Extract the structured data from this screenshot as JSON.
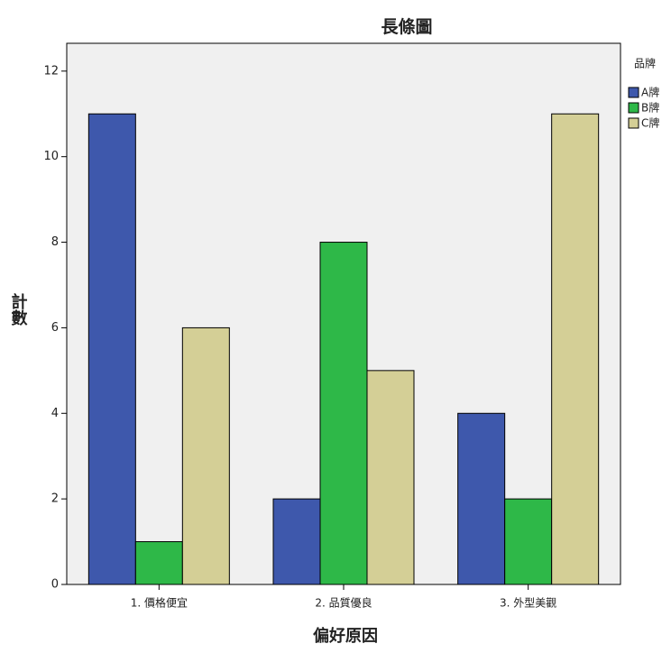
{
  "chart_data": {
    "type": "bar",
    "title": "長條圖",
    "x_label": "偏好原因",
    "y_label": "計數",
    "categories": [
      "1. 價格便宜",
      "2. 品質優良",
      "3. 外型美觀"
    ],
    "legend_title": "品牌",
    "series": [
      {
        "name": "A牌",
        "color": "#3e58ac",
        "values": [
          11,
          2,
          4
        ]
      },
      {
        "name": "B牌",
        "color": "#2eb848",
        "values": [
          1,
          8,
          2
        ]
      },
      {
        "name": "C牌",
        "color": "#d4cf96",
        "values": [
          6,
          5,
          11
        ]
      }
    ],
    "ylim": [
      0,
      12.65
    ],
    "yticks": [
      0,
      2,
      4,
      6,
      8,
      10,
      12
    ],
    "plot_background": "#f0f0f0"
  }
}
